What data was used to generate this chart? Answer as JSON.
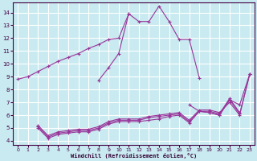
{
  "xlabel": "Windchill (Refroidissement éolien,°C)",
  "background_color": "#c8eaf0",
  "grid_color": "#ffffff",
  "line_color": "#993399",
  "x_ticks": [
    0,
    1,
    2,
    3,
    4,
    5,
    6,
    7,
    8,
    9,
    10,
    11,
    12,
    13,
    14,
    15,
    16,
    17,
    18,
    19,
    20,
    21,
    22,
    23
  ],
  "y_ticks": [
    4,
    5,
    6,
    7,
    8,
    9,
    10,
    11,
    12,
    13,
    14
  ],
  "xlim": [
    -0.5,
    23.5
  ],
  "ylim": [
    3.7,
    14.8
  ],
  "series": [
    {
      "x": [
        0,
        1,
        2,
        3,
        4,
        5,
        6,
        7,
        8,
        9,
        10,
        11,
        12,
        13,
        14,
        15,
        16,
        17,
        18
      ],
      "y": [
        8.8,
        9.0,
        9.4,
        9.8,
        10.2,
        10.5,
        10.8,
        11.2,
        11.5,
        11.9,
        12.0,
        13.9,
        13.3,
        13.3,
        14.5,
        13.3,
        11.9,
        11.9,
        8.9
      ]
    },
    {
      "comment": "Short spike: x=8 ~8.7, x=10~10.8, x=11~13.9",
      "x": [
        8,
        9,
        10,
        11
      ],
      "y": [
        8.7,
        9.7,
        10.8,
        13.9
      ]
    },
    {
      "x": [
        2,
        3,
        4,
        5,
        6,
        7,
        8,
        9,
        10,
        11,
        12,
        13,
        14,
        15,
        16,
        17,
        18,
        19,
        20,
        21,
        22,
        23
      ],
      "y": [
        5.0,
        4.2,
        4.5,
        4.6,
        4.7,
        4.7,
        4.9,
        5.3,
        5.5,
        5.5,
        5.5,
        5.6,
        5.7,
        5.9,
        6.0,
        5.4,
        6.3,
        6.2,
        6.0,
        7.2,
        6.1,
        9.2
      ]
    },
    {
      "x": [
        2,
        3,
        4,
        5,
        6,
        7,
        8,
        9,
        10,
        11,
        12,
        13,
        14,
        15,
        16,
        17,
        18,
        19,
        20,
        21,
        22
      ],
      "y": [
        5.1,
        4.3,
        4.6,
        4.7,
        4.8,
        4.8,
        5.0,
        5.4,
        5.6,
        5.6,
        5.6,
        5.8,
        5.9,
        6.0,
        6.1,
        5.5,
        6.3,
        6.3,
        6.1,
        7.3,
        6.2
      ]
    },
    {
      "x": [
        2,
        3,
        4,
        5,
        6,
        7,
        8,
        9,
        10,
        11,
        12,
        13,
        14,
        15,
        16,
        17,
        18,
        19,
        20,
        21,
        22,
        23
      ],
      "y": [
        5.2,
        4.4,
        4.7,
        4.8,
        4.9,
        4.9,
        5.1,
        5.5,
        5.7,
        5.7,
        5.7,
        5.9,
        6.0,
        6.1,
        6.2,
        5.6,
        6.4,
        6.4,
        6.2,
        7.0,
        6.0,
        9.2
      ]
    },
    {
      "comment": "Right side line: x=18 ~6.3, x=19~6.2, x=20~6.0, x=21~7.2, x=22~6.8, x=23~9.2",
      "x": [
        17,
        18,
        19,
        20,
        21,
        22,
        23
      ],
      "y": [
        6.8,
        6.3,
        6.2,
        6.0,
        7.2,
        6.8,
        9.2
      ]
    }
  ]
}
